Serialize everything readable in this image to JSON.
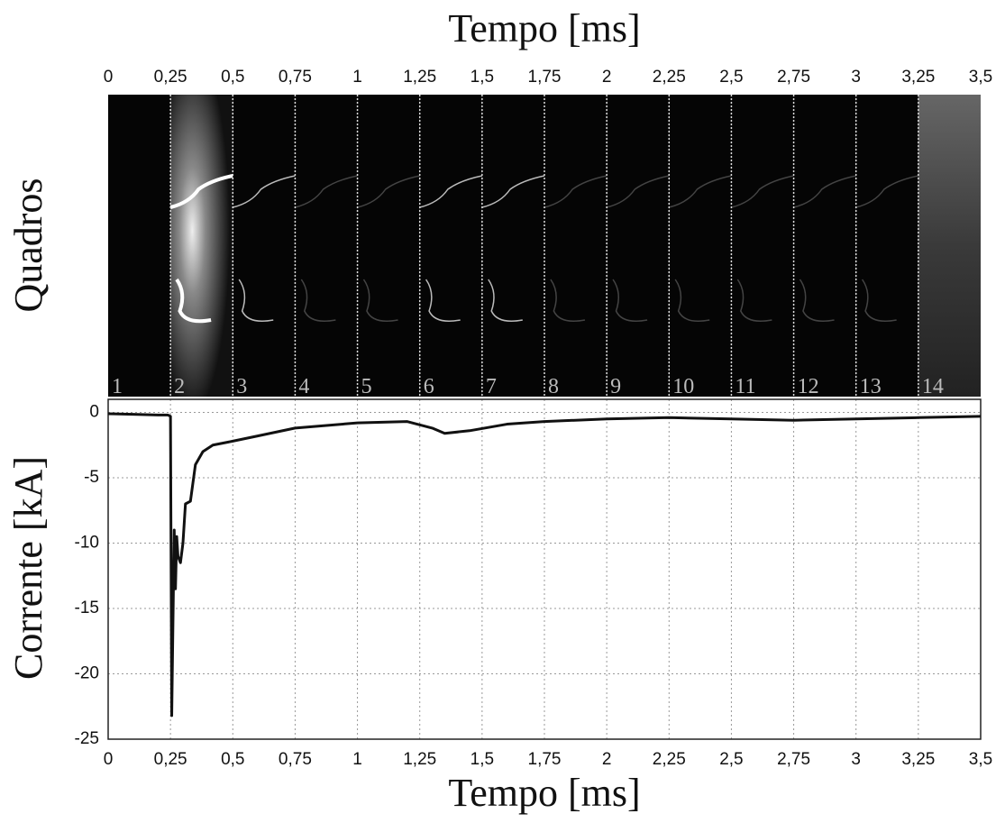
{
  "chart_data": {
    "type": "line",
    "top_axis_label": "Tempo [ms]",
    "x_label": "Tempo [ms]",
    "frames_label": "Quadros",
    "y_label": "Corrente [kA]",
    "frames": [
      1,
      2,
      3,
      4,
      5,
      6,
      7,
      8,
      9,
      10,
      11,
      12,
      13,
      14
    ],
    "xlim": [
      0,
      3.5
    ],
    "xticks": [
      0,
      {
        "value": 0.25,
        "label": "0,25"
      },
      {
        "value": 0.5,
        "label": "0,5"
      },
      {
        "value": 0.75,
        "label": "0,75"
      },
      1,
      {
        "value": 1.25,
        "label": "1,25"
      },
      {
        "value": 1.5,
        "label": "1,5"
      },
      {
        "value": 1.75,
        "label": "1,75"
      },
      2,
      {
        "value": 2.25,
        "label": "2,25"
      },
      {
        "value": 2.5,
        "label": "2,5"
      },
      {
        "value": 2.75,
        "label": "2,75"
      },
      3,
      {
        "value": 3.25,
        "label": "3,25"
      },
      {
        "value": 3.5,
        "label": "3,5"
      }
    ],
    "ylim": [
      -25,
      1
    ],
    "yticks": [
      0,
      -5,
      -10,
      -15,
      -20,
      -25
    ],
    "grid": true,
    "series": [
      {
        "color": "#111111",
        "x": [
          0,
          0.1,
          0.2,
          0.24,
          0.25,
          0.255,
          0.26,
          0.265,
          0.27,
          0.275,
          0.28,
          0.29,
          0.3,
          0.31,
          0.33,
          0.35,
          0.38,
          0.42,
          0.5,
          0.6,
          0.75,
          1.0,
          1.2,
          1.3,
          1.35,
          1.45,
          1.6,
          1.75,
          2.0,
          2.25,
          2.5,
          2.75,
          3.0,
          3.25,
          3.5
        ],
        "values": [
          -0.1,
          -0.15,
          -0.2,
          -0.2,
          -0.3,
          -23.2,
          -16,
          -9,
          -13.5,
          -9.5,
          -11,
          -11.5,
          -10,
          -7,
          -6.8,
          -4,
          -3,
          -2.5,
          -2.2,
          -1.8,
          -1.2,
          -0.8,
          -0.7,
          -1.2,
          -1.6,
          -1.4,
          -0.9,
          -0.7,
          -0.5,
          -0.4,
          -0.5,
          -0.6,
          -0.5,
          -0.4,
          -0.3
        ]
      }
    ]
  }
}
